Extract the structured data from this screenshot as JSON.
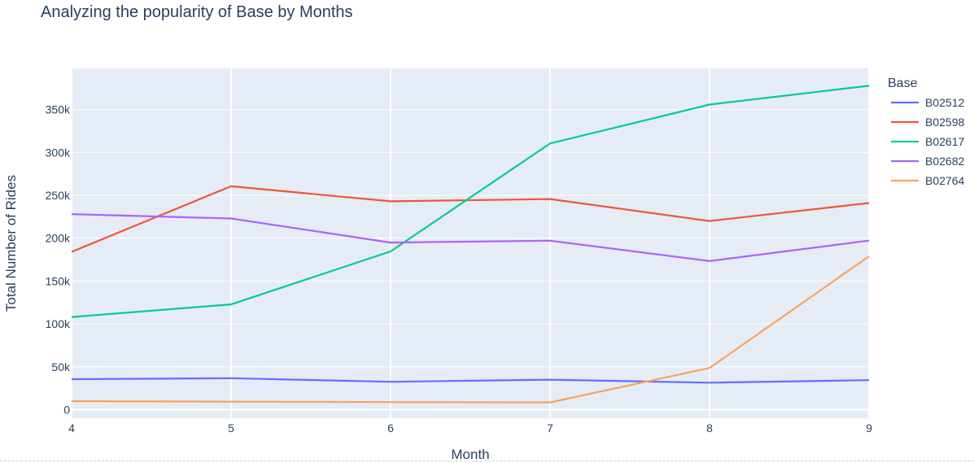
{
  "chart_data": {
    "type": "line",
    "title": "Analyzing the popularity of Base by Months",
    "xlabel": "Month",
    "ylabel": "Total Number of Rides",
    "x": [
      4,
      5,
      6,
      7,
      8,
      9
    ],
    "xlim": [
      4,
      9
    ],
    "ylim": [
      -10000,
      398000
    ],
    "x_ticks": [
      "4",
      "5",
      "6",
      "7",
      "8",
      "9"
    ],
    "y_ticks": [
      {
        "value": 0,
        "label": "0"
      },
      {
        "value": 50000,
        "label": "50k"
      },
      {
        "value": 100000,
        "label": "100k"
      },
      {
        "value": 150000,
        "label": "150k"
      },
      {
        "value": 200000,
        "label": "200k"
      },
      {
        "value": 250000,
        "label": "250k"
      },
      {
        "value": 300000,
        "label": "300k"
      },
      {
        "value": 350000,
        "label": "350k"
      }
    ],
    "grid": true,
    "legend": {
      "title": "Base",
      "position": "right"
    },
    "series": [
      {
        "name": "B02512",
        "color": "#636efa",
        "values": [
          35500,
          36700,
          32500,
          35000,
          31500,
          34400
        ]
      },
      {
        "name": "B02598",
        "color": "#ef553b",
        "values": [
          184000,
          260500,
          243000,
          245600,
          220000,
          241000
        ]
      },
      {
        "name": "B02617",
        "color": "#00cc96",
        "values": [
          108000,
          122700,
          184500,
          310400,
          355800,
          377700
        ]
      },
      {
        "name": "B02682",
        "color": "#ab63fa",
        "values": [
          228000,
          222900,
          194900,
          197000,
          173300,
          197100
        ]
      },
      {
        "name": "B02764",
        "color": "#ffa15a",
        "values": [
          9900,
          9400,
          8800,
          8500,
          48600,
          178800
        ]
      }
    ]
  }
}
